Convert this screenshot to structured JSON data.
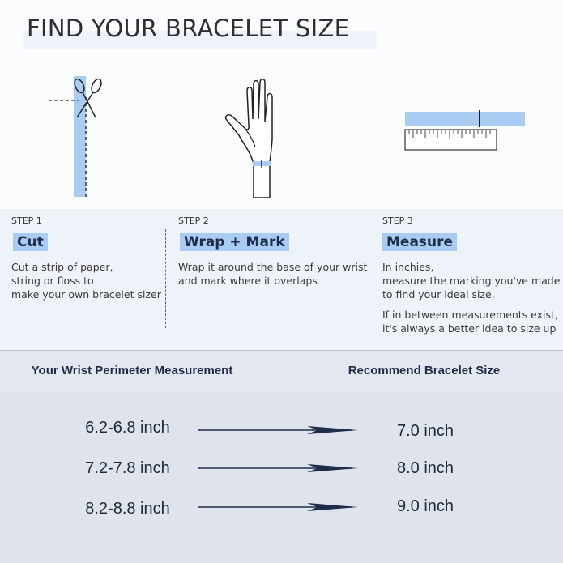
{
  "title": "FIND YOUR BRACELET SIZE",
  "colors": {
    "accent_blue": "#a9cdf2",
    "navy": "#1f2d4a",
    "steps_bg": "#eef2f9",
    "table_bg": "#dfe4ec"
  },
  "illustrations": [
    "scissors-strip-icon",
    "hand-wrist-icon",
    "ruler-strip-icon"
  ],
  "steps": [
    {
      "num": "STEP 1",
      "title": "Cut",
      "desc": [
        "Cut a strip of paper,",
        "string or floss to",
        "make your own bracelet sizer"
      ]
    },
    {
      "num": "STEP 2",
      "title": "Wrap + Mark",
      "desc": [
        "Wrap it around the base of your wrist",
        "and mark where it overlaps"
      ]
    },
    {
      "num": "STEP 3",
      "title": "Measure",
      "desc": [
        "In inchies,",
        "measure the marking you've made",
        "to find your ideal size."
      ],
      "note": [
        "If in between measurements exist,",
        "it's always a better idea to size up"
      ]
    }
  ],
  "table": {
    "headers": [
      "Your Wrist Perimeter Measurement",
      "Recommend Bracelet Size"
    ],
    "rows": [
      {
        "wrist": "6.2-6.8 inch",
        "size": "7.0 inch"
      },
      {
        "wrist": "7.2-7.8 inch",
        "size": "8.0 inch"
      },
      {
        "wrist": "8.2-8.8 inch",
        "size": "9.0 inch"
      }
    ]
  }
}
